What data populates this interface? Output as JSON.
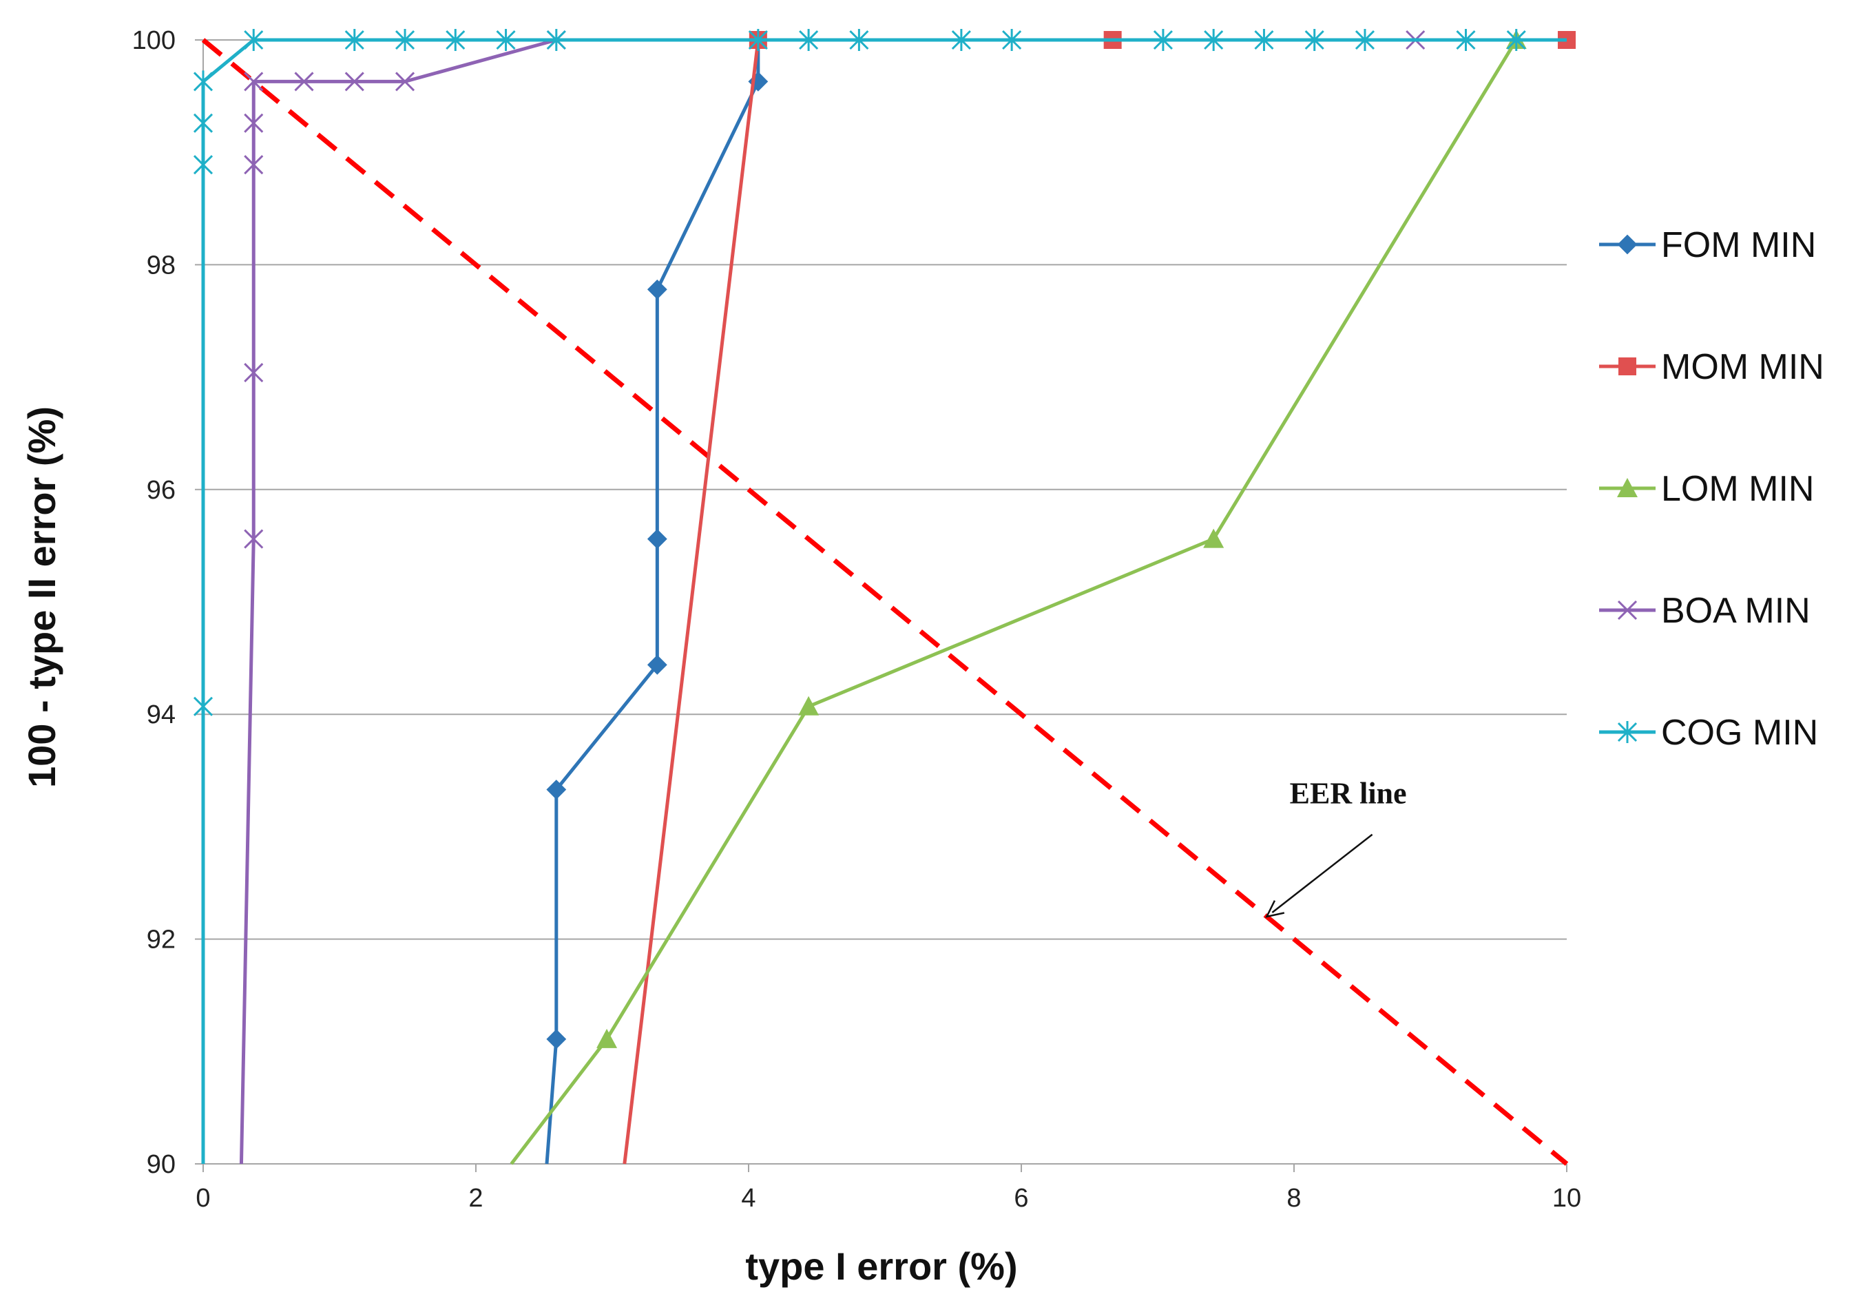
{
  "chart_data": {
    "type": "line",
    "title": "",
    "xlabel": "type I error (%)",
    "ylabel": "100 - type II error (%)",
    "xlim": [
      0,
      10
    ],
    "ylim": [
      90,
      100
    ],
    "x_ticks": [
      0,
      2,
      4,
      6,
      8,
      10
    ],
    "y_ticks": [
      90,
      92,
      94,
      96,
      98,
      100
    ],
    "grid": "horizontal",
    "legend_position": "right",
    "series": [
      {
        "name": "FOM MIN",
        "color": "#2E75B6",
        "marker": "diamond",
        "points": [
          [
            2.52,
            90.0
          ],
          [
            2.59,
            91.11
          ],
          [
            2.59,
            93.33
          ],
          [
            3.33,
            94.44
          ],
          [
            3.33,
            95.56
          ],
          [
            3.33,
            97.78
          ],
          [
            4.07,
            99.63
          ],
          [
            4.07,
            100.0
          ]
        ],
        "marker_points": [
          [
            2.59,
            91.11
          ],
          [
            2.59,
            93.33
          ],
          [
            3.33,
            94.44
          ],
          [
            3.33,
            95.56
          ],
          [
            3.33,
            97.78
          ],
          [
            4.07,
            99.63
          ]
        ]
      },
      {
        "name": "MOM MIN",
        "color": "#E05050",
        "marker": "square",
        "points": [
          [
            3.09,
            90.0
          ],
          [
            4.07,
            100.0
          ],
          [
            6.67,
            100.0
          ],
          [
            10.0,
            100.0
          ]
        ],
        "marker_points": [
          [
            4.07,
            100.0
          ],
          [
            6.67,
            100.0
          ],
          [
            10.0,
            100.0
          ]
        ]
      },
      {
        "name": "LOM MIN",
        "color": "#8DC153",
        "marker": "triangle",
        "points": [
          [
            2.26,
            90.0
          ],
          [
            2.96,
            91.11
          ],
          [
            4.44,
            94.07
          ],
          [
            7.41,
            95.56
          ],
          [
            9.63,
            100.0
          ]
        ],
        "marker_points": [
          [
            2.96,
            91.11
          ],
          [
            4.44,
            94.07
          ],
          [
            7.41,
            95.56
          ],
          [
            9.63,
            100.0
          ]
        ]
      },
      {
        "name": "BOA MIN",
        "color": "#8E63B4",
        "marker": "x",
        "points": [
          [
            0.28,
            90.0
          ],
          [
            0.37,
            95.56
          ],
          [
            0.37,
            97.04
          ],
          [
            0.37,
            98.89
          ],
          [
            0.37,
            99.26
          ],
          [
            0.37,
            99.63
          ],
          [
            0.74,
            99.63
          ],
          [
            1.11,
            99.63
          ],
          [
            1.48,
            99.63
          ],
          [
            2.59,
            100.0
          ],
          [
            8.89,
            100.0
          ]
        ],
        "marker_points": [
          [
            0.37,
            95.56
          ],
          [
            0.37,
            97.04
          ],
          [
            0.37,
            98.89
          ],
          [
            0.37,
            99.26
          ],
          [
            0.37,
            99.63
          ],
          [
            0.74,
            99.63
          ],
          [
            1.11,
            99.63
          ],
          [
            1.48,
            99.63
          ],
          [
            2.59,
            100.0
          ],
          [
            8.89,
            100.0
          ]
        ]
      },
      {
        "name": "COG MIN",
        "color": "#1FB0C8",
        "marker": "star",
        "points": [
          [
            0.0,
            90.0
          ],
          [
            0.0,
            94.07
          ],
          [
            0.0,
            98.89
          ],
          [
            0.0,
            99.26
          ],
          [
            0.0,
            99.63
          ],
          [
            0.37,
            100.0
          ],
          [
            1.11,
            100.0
          ],
          [
            1.48,
            100.0
          ],
          [
            1.85,
            100.0
          ],
          [
            2.22,
            100.0
          ],
          [
            2.59,
            100.0
          ],
          [
            4.07,
            100.0
          ],
          [
            4.44,
            100.0
          ],
          [
            4.81,
            100.0
          ],
          [
            5.56,
            100.0
          ],
          [
            5.93,
            100.0
          ],
          [
            7.04,
            100.0
          ],
          [
            7.41,
            100.0
          ],
          [
            7.78,
            100.0
          ],
          [
            8.15,
            100.0
          ],
          [
            8.52,
            100.0
          ],
          [
            9.26,
            100.0
          ],
          [
            9.63,
            100.0
          ],
          [
            10.0,
            100.0
          ]
        ],
        "marker_points": [
          [
            0.0,
            94.07
          ],
          [
            0.0,
            98.89
          ],
          [
            0.0,
            99.26
          ],
          [
            0.0,
            99.63
          ],
          [
            0.37,
            100.0
          ],
          [
            1.11,
            100.0
          ],
          [
            1.48,
            100.0
          ],
          [
            1.85,
            100.0
          ],
          [
            2.22,
            100.0
          ],
          [
            2.59,
            100.0
          ],
          [
            4.07,
            100.0
          ],
          [
            4.44,
            100.0
          ],
          [
            4.81,
            100.0
          ],
          [
            5.56,
            100.0
          ],
          [
            5.93,
            100.0
          ],
          [
            7.04,
            100.0
          ],
          [
            7.41,
            100.0
          ],
          [
            7.78,
            100.0
          ],
          [
            8.15,
            100.0
          ],
          [
            8.52,
            100.0
          ],
          [
            9.26,
            100.0
          ],
          [
            9.63,
            100.0
          ]
        ]
      }
    ],
    "reference_line": {
      "color": "#FF0000",
      "style": "dashed",
      "points": [
        [
          0,
          100
        ],
        [
          10,
          90
        ]
      ]
    },
    "annotations": [
      {
        "text": "EER line",
        "target": [
          7.8,
          92.2
        ],
        "text_at": [
          8.7,
          92.9
        ]
      }
    ]
  }
}
